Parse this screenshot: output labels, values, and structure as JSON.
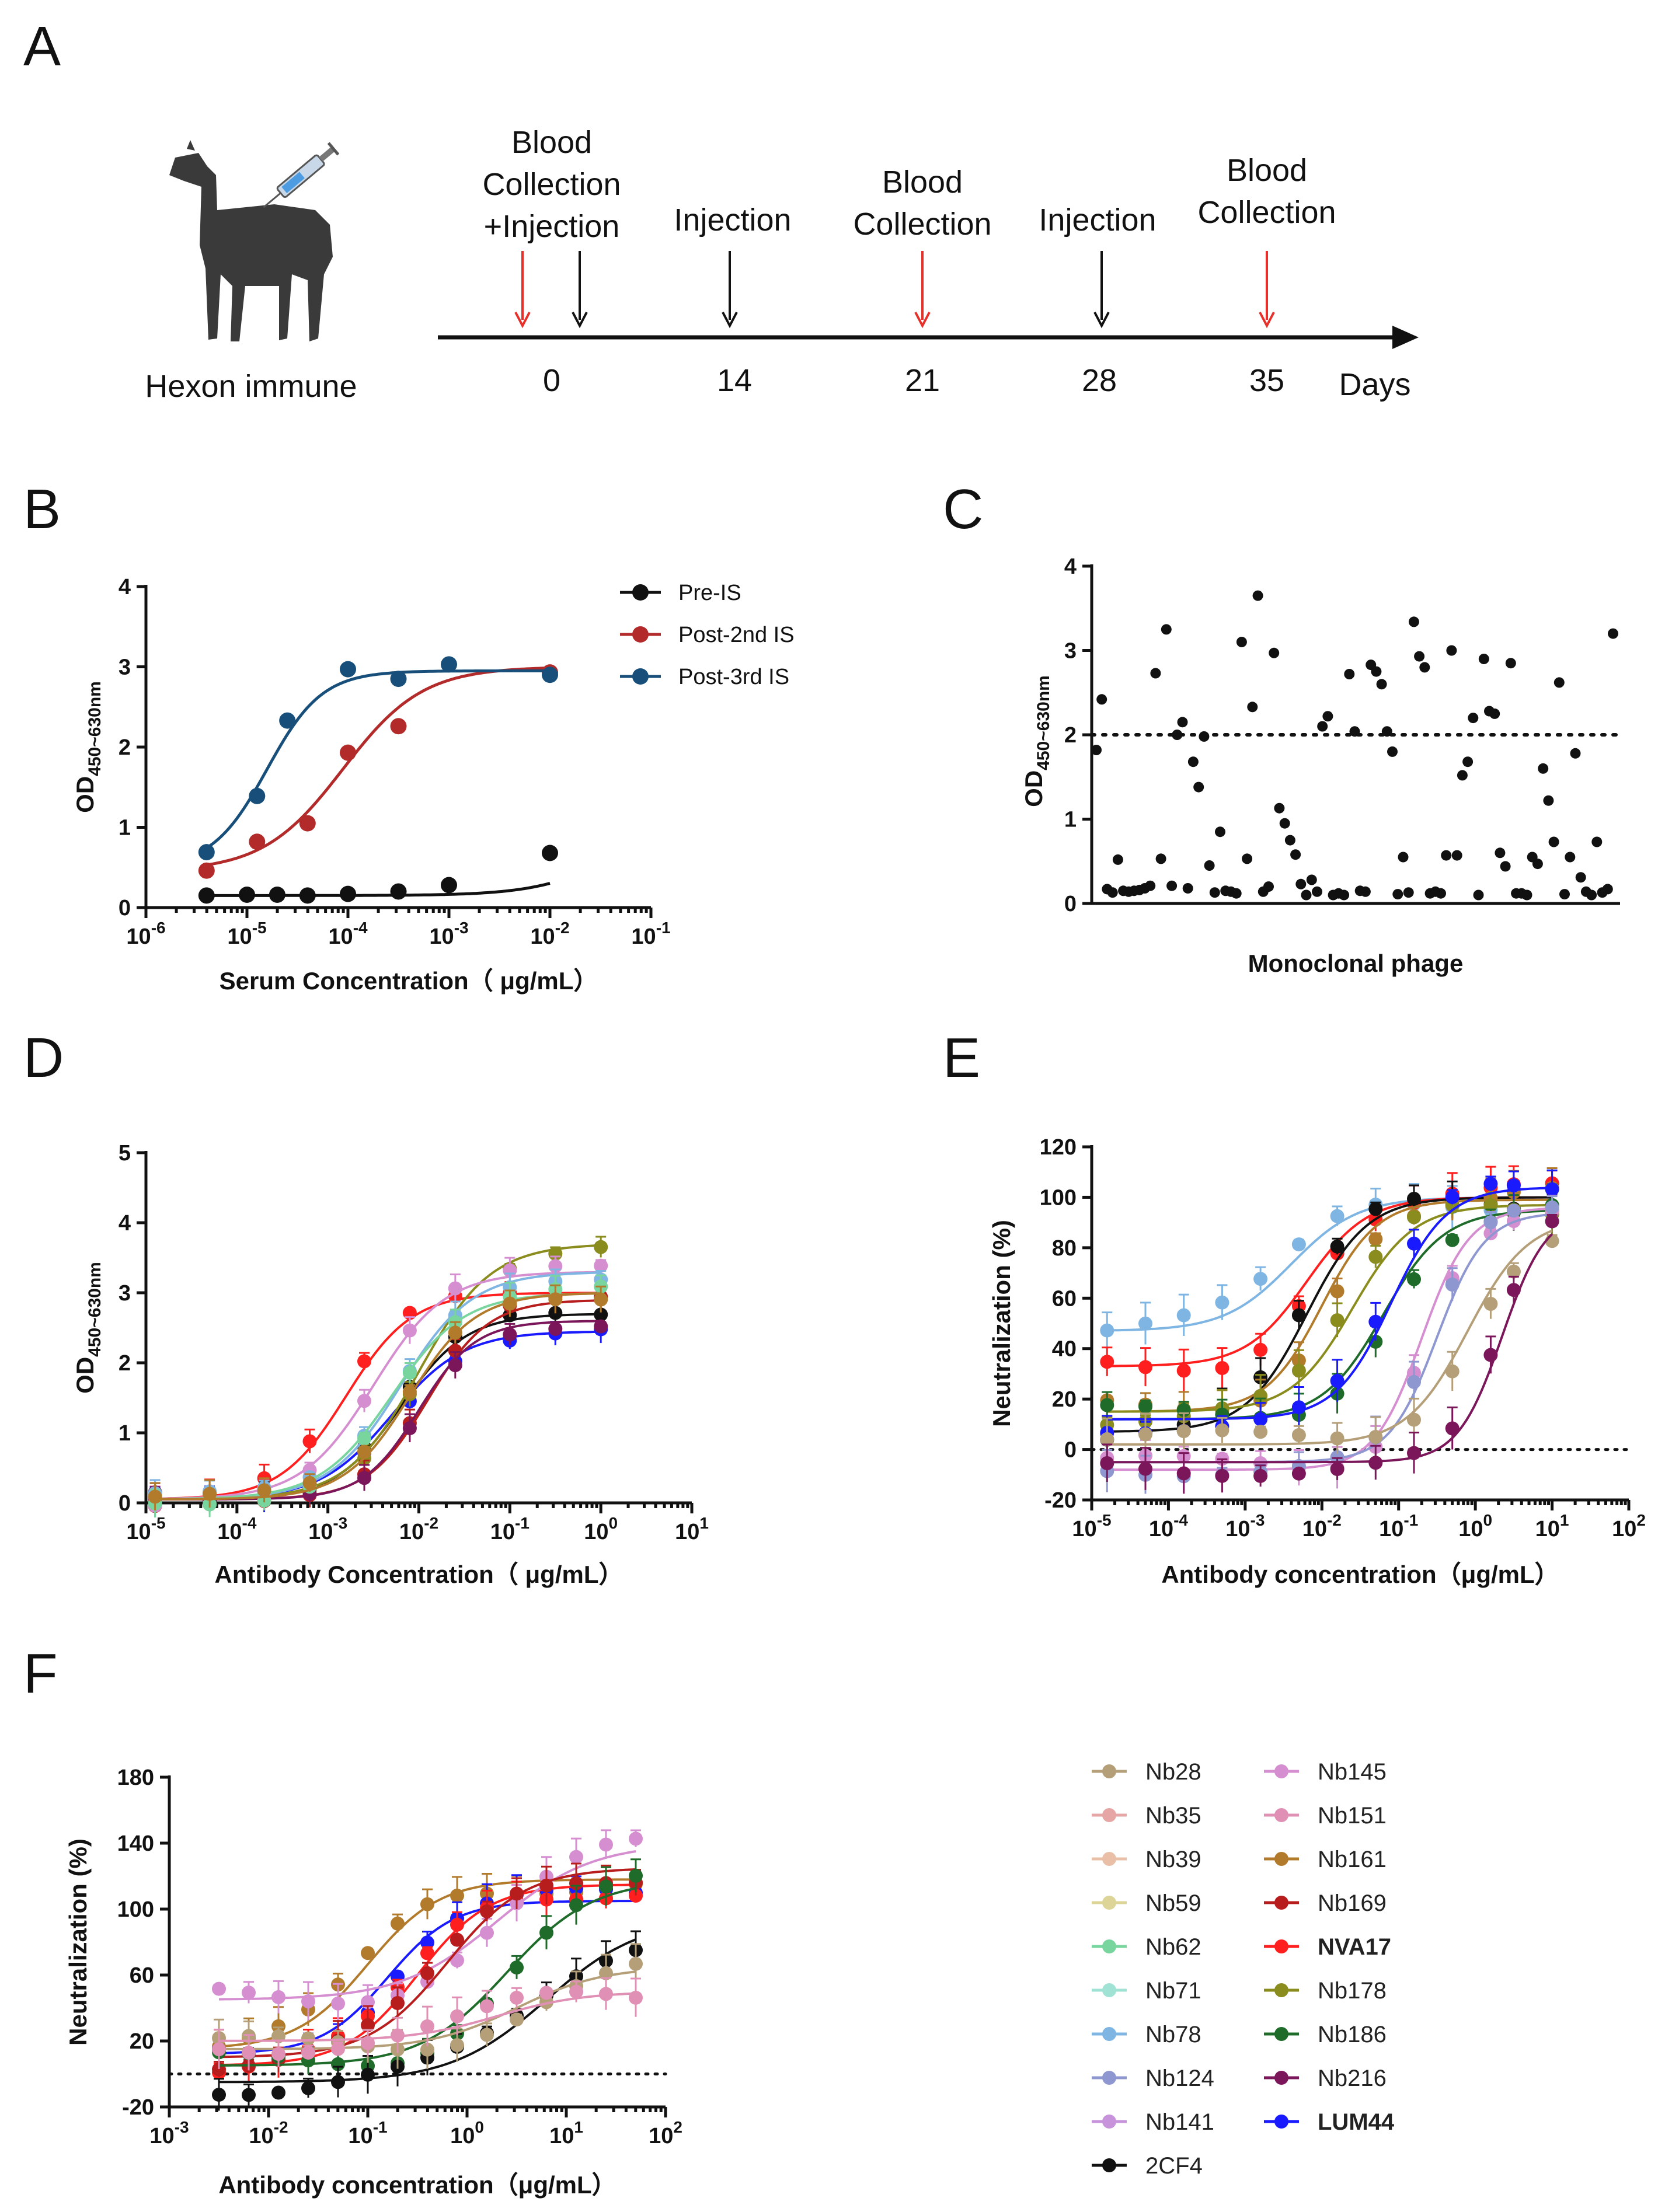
{
  "panel_labels": {
    "a": "A",
    "b": "B",
    "c": "C",
    "d": "D",
    "e": "E",
    "f": "F"
  },
  "timeline": {
    "animal_label": "Hexon immune",
    "events": [
      {
        "label": [
          "Blood",
          "Collection",
          "+Injection"
        ],
        "day": 0
      },
      {
        "label": [
          "Injection"
        ],
        "day": 14
      },
      {
        "label": [
          "Blood",
          "Collection"
        ],
        "day": 21
      },
      {
        "label": [
          "Injection"
        ],
        "day": 28
      },
      {
        "label": [
          "Blood",
          "Collection"
        ],
        "day": 35
      }
    ],
    "ticks": [
      "0",
      "14",
      "21",
      "28",
      "35"
    ],
    "unit": "Days",
    "colors": {
      "blood": "#e8302a",
      "injection": "#111111"
    }
  },
  "chart_data": [
    {
      "panel": "B",
      "type": "line",
      "xscale": "log",
      "xlabel": "Serum Concentration（ μg/mL）",
      "ylabel": "OD450~630nm",
      "xlim_exp": [
        -6,
        -1
      ],
      "ylim": [
        0,
        4
      ],
      "yticks": [
        0,
        1,
        2,
        3,
        4
      ],
      "xtick_labels": [
        "10-6",
        "10-5",
        "10-4",
        "10-3",
        "10-2",
        "10-1"
      ],
      "series": [
        {
          "name": "Pre-IS",
          "color": "#111111",
          "x_exp": [
            -5.4,
            -5.0,
            -4.7,
            -4.4,
            -4.0,
            -3.5,
            -3.0,
            -2.0
          ],
          "y": [
            0.15,
            0.16,
            0.16,
            0.15,
            0.17,
            0.2,
            0.28,
            0.68
          ]
        },
        {
          "name": "Post-2nd IS",
          "color": "#b22a2a",
          "x_exp": [
            -5.4,
            -4.9,
            -4.4,
            -4.0,
            -3.5,
            -2.0
          ],
          "y": [
            0.46,
            0.82,
            1.05,
            1.93,
            2.26,
            2.93
          ]
        },
        {
          "name": "Post-3rd IS",
          "color": "#174f7a",
          "x_exp": [
            -5.4,
            -4.9,
            -4.6,
            -4.0,
            -3.5,
            -3.0,
            -2.0
          ],
          "y": [
            0.69,
            1.39,
            2.33,
            2.97,
            2.85,
            3.03,
            2.9
          ]
        }
      ]
    },
    {
      "panel": "C",
      "type": "scatter",
      "xlabel": "Monoclonal phage",
      "ylabel": "OD450~630nm",
      "ylim": [
        0,
        4
      ],
      "yticks": [
        0,
        1,
        2,
        3,
        4
      ],
      "threshold": 2,
      "y": [
        1.82,
        2.42,
        0.17,
        0.13,
        0.52,
        0.15,
        0.14,
        0.15,
        0.16,
        0.18,
        0.21,
        2.73,
        0.53,
        3.25,
        0.21,
        2.0,
        2.15,
        0.18,
        1.68,
        1.38,
        1.98,
        0.45,
        0.13,
        0.85,
        0.15,
        0.14,
        0.12,
        3.1,
        0.53,
        2.33,
        3.65,
        0.14,
        0.2,
        2.97,
        1.13,
        0.95,
        0.75,
        0.58,
        0.23,
        0.1,
        0.28,
        0.14,
        2.1,
        2.22,
        0.1,
        0.12,
        0.1,
        2.72,
        2.04,
        0.15,
        0.14,
        2.83,
        2.75,
        2.6,
        2.04,
        1.8,
        0.11,
        0.55,
        0.13,
        3.34,
        2.93,
        2.8,
        0.12,
        0.14,
        0.12,
        0.57,
        3.0,
        0.57,
        1.52,
        1.68,
        2.2,
        0.1,
        2.9,
        2.28,
        2.25,
        0.6,
        0.44,
        2.85,
        0.12,
        0.12,
        0.1,
        0.55,
        0.47,
        1.6,
        1.22,
        0.73,
        2.62,
        0.11,
        0.55,
        1.78,
        0.31,
        0.14,
        0.1,
        0.73,
        0.13,
        0.17,
        3.2
      ]
    },
    {
      "panel": "D",
      "type": "line",
      "xscale": "log",
      "xlabel": "Antibody Concentration（ μg/mL）",
      "ylabel": "OD450~630nm",
      "xlim_exp": [
        -5,
        1
      ],
      "ylim": [
        0,
        5
      ],
      "yticks": [
        0,
        1,
        2,
        3,
        4,
        5
      ],
      "xtick_labels": [
        "10-5",
        "10-4",
        "10-3",
        "10-2",
        "10-1",
        "100",
        "101"
      ],
      "x_exp": [
        -4.9,
        -4.3,
        -3.7,
        -3.2,
        -2.6,
        -2.1,
        -1.6,
        -1.0,
        -0.5,
        0.0
      ],
      "curves": [
        {
          "name": "NVA17",
          "top": 3.0,
          "log_ec50": -2.8,
          "hill": 1.2
        },
        {
          "name": "LUM44",
          "top": 2.45,
          "log_ec50": -2.3,
          "hill": 1.1
        },
        {
          "name": "2CF4",
          "top": 2.7,
          "log_ec50": -2.2,
          "hill": 1.2
        },
        {
          "name": "Nb178",
          "top": 3.7,
          "log_ec50": -2.0,
          "hill": 1.1
        },
        {
          "name": "Nb169",
          "top": 2.9,
          "log_ec50": -1.9,
          "hill": 1.3
        },
        {
          "name": "Nb216",
          "top": 2.6,
          "log_ec50": -2.0,
          "hill": 1.4
        },
        {
          "name": "Nb145",
          "top": 3.3,
          "log_ec50": -2.5,
          "hill": 1.1
        },
        {
          "name": "Nb78",
          "top": 3.3,
          "log_ec50": -2.2,
          "hill": 1.1
        },
        {
          "name": "Nb62",
          "top": 3.0,
          "log_ec50": -2.3,
          "hill": 1.1
        },
        {
          "name": "Nb161",
          "top": 3.0,
          "log_ec50": -2.1,
          "hill": 1.2
        }
      ]
    },
    {
      "panel": "E",
      "type": "line",
      "xscale": "log",
      "xlabel": "Antibody concentration（μg/mL）",
      "ylabel": "Neutralization (%)",
      "xlim_exp": [
        -5,
        2
      ],
      "ylim": [
        -20,
        120
      ],
      "yticks": [
        -20,
        0,
        20,
        40,
        60,
        80,
        100,
        120
      ],
      "threshold": 0,
      "xtick_labels": [
        "10-5",
        "10-4",
        "10-3",
        "10-2",
        "10-1",
        "100",
        "101",
        "102"
      ],
      "x_exp": [
        -4.8,
        -4.3,
        -3.8,
        -3.3,
        -2.8,
        -2.3,
        -1.8,
        -1.3,
        -0.8,
        -0.3,
        0.2,
        0.5,
        1.0
      ],
      "curves": [
        {
          "name": "Nb78",
          "bottom": 47,
          "top": 100,
          "log_ec50": -2.4,
          "hill": 1.0
        },
        {
          "name": "NVA17",
          "bottom": 33,
          "top": 100,
          "log_ec50": -2.2,
          "hill": 1.1
        },
        {
          "name": "2CF4",
          "bottom": 7,
          "top": 100,
          "log_ec50": -2.2,
          "hill": 1.1
        },
        {
          "name": "Nb161",
          "bottom": 15,
          "top": 99,
          "log_ec50": -2.0,
          "hill": 1.2
        },
        {
          "name": "Nb178",
          "bottom": 15,
          "top": 97,
          "log_ec50": -1.6,
          "hill": 1.1
        },
        {
          "name": "Nb186",
          "bottom": 12,
          "top": 95,
          "log_ec50": -1.2,
          "hill": 1.1
        },
        {
          "name": "LUM44",
          "bottom": 12,
          "top": 104,
          "log_ec50": -1.1,
          "hill": 1.2
        },
        {
          "name": "Nb145",
          "bottom": -8,
          "top": 96,
          "log_ec50": -0.7,
          "hill": 1.4
        },
        {
          "name": "Nb124",
          "bottom": -5,
          "top": 94,
          "log_ec50": -0.5,
          "hill": 1.4
        },
        {
          "name": "Nb28",
          "bottom": 2,
          "top": 92,
          "log_ec50": -0.1,
          "hill": 1.1
        },
        {
          "name": "Nb216",
          "bottom": -5,
          "top": 95,
          "log_ec50": 0.35,
          "hill": 1.5
        }
      ]
    },
    {
      "panel": "F",
      "type": "line",
      "xscale": "log",
      "xlabel": "Antibody concentration（μg/mL）",
      "ylabel": "Neutralization (%)",
      "xlim_exp": [
        -3,
        2
      ],
      "ylim": [
        -20,
        180
      ],
      "yticks": [
        -20,
        20,
        60,
        100,
        140,
        180
      ],
      "threshold": 0,
      "xtick_labels": [
        "10-3",
        "10-2",
        "10-1",
        "100",
        "101",
        "102"
      ],
      "x_exp": [
        -2.5,
        -2.2,
        -1.9,
        -1.6,
        -1.3,
        -1.0,
        -0.7,
        -0.4,
        -0.1,
        0.2,
        0.5,
        0.8,
        1.1,
        1.4,
        1.7
      ],
      "curves": [
        {
          "name": "Nb161",
          "bottom": 15,
          "top": 118,
          "log_ec50": -1.0,
          "hill": 1.2
        },
        {
          "name": "LUM44",
          "bottom": 12,
          "top": 105,
          "log_ec50": -0.8,
          "hill": 1.3
        },
        {
          "name": "NVA17",
          "bottom": 5,
          "top": 115,
          "log_ec50": -0.5,
          "hill": 1.2
        },
        {
          "name": "Nb145",
          "bottom": 45,
          "top": 140,
          "log_ec50": 0.3,
          "hill": 0.9
        },
        {
          "name": "Nb169",
          "bottom": 10,
          "top": 125,
          "log_ec50": -0.2,
          "hill": 1.1
        },
        {
          "name": "Nb186",
          "bottom": 5,
          "top": 118,
          "log_ec50": 0.4,
          "hill": 1.0
        },
        {
          "name": "2CF4",
          "bottom": -5,
          "top": 95,
          "log_ec50": 0.8,
          "hill": 0.9
        },
        {
          "name": "Nb28",
          "bottom": 15,
          "top": 65,
          "log_ec50": 0.5,
          "hill": 1.0
        },
        {
          "name": "Nb151",
          "bottom": 20,
          "top": 50,
          "log_ec50": 0.3,
          "hill": 1.0
        }
      ]
    }
  ],
  "legend_F": [
    {
      "name": "Nb28",
      "color": "#b59f78"
    },
    {
      "name": "Nb145",
      "color": "#d58fd1"
    },
    {
      "name": "Nb35",
      "color": "#e6a6a6"
    },
    {
      "name": "Nb151",
      "color": "#e090b4"
    },
    {
      "name": "Nb39",
      "color": "#e9c0a7"
    },
    {
      "name": "Nb161",
      "color": "#b27b2c"
    },
    {
      "name": "Nb59",
      "color": "#dcd597"
    },
    {
      "name": "Nb169",
      "color": "#b81d1d"
    },
    {
      "name": "Nb62",
      "color": "#79d59e"
    },
    {
      "name": "NVA17",
      "color": "#ff1f1f",
      "bold": true
    },
    {
      "name": "Nb71",
      "color": "#a0e3d4"
    },
    {
      "name": "Nb178",
      "color": "#8a8c1d"
    },
    {
      "name": "Nb78",
      "color": "#7eb5e3"
    },
    {
      "name": "Nb186",
      "color": "#1e6b2a"
    },
    {
      "name": "Nb124",
      "color": "#8e97cf"
    },
    {
      "name": "Nb216",
      "color": "#7a1659"
    },
    {
      "name": "Nb141",
      "color": "#c793db"
    },
    {
      "name": "LUM44",
      "color": "#1a1aff",
      "bold": true
    },
    {
      "name": "2CF4",
      "color": "#111111"
    }
  ]
}
